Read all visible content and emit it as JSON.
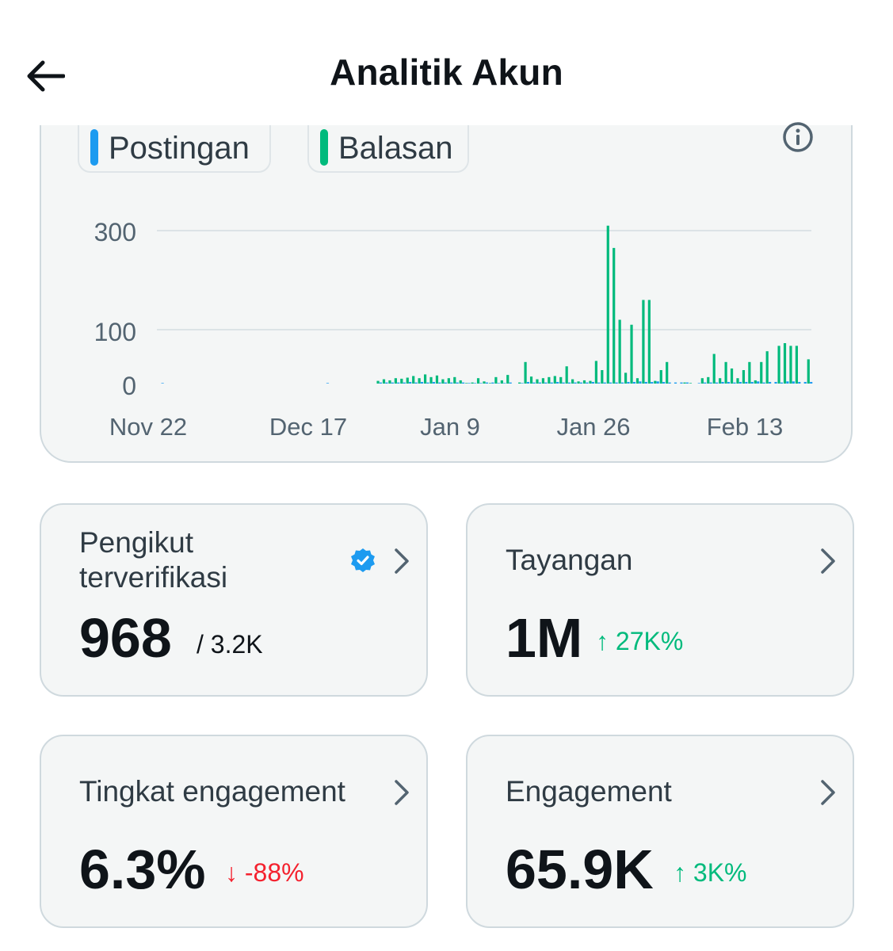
{
  "header": {
    "title": "Analitik Akun",
    "back_icon": "arrow-left-icon"
  },
  "legend": [
    {
      "label": "Postingan",
      "color": "#1d9bf0"
    },
    {
      "label": "Balasan",
      "color": "#00ba7c"
    }
  ],
  "info_icon": "info-icon",
  "chart_data": {
    "type": "bar",
    "x_tick_labels": [
      "Nov 22",
      "Dec 17",
      "Jan 9",
      "Jan 26",
      "Feb 13"
    ],
    "y_tick_labels": [
      "300",
      "100",
      "0"
    ],
    "y_ticks": [
      300,
      100,
      0
    ],
    "ylim": [
      0,
      320
    ],
    "grid": true,
    "legend_position": "top-left",
    "series": [
      {
        "name": "Postingan",
        "color": "#1d9bf0",
        "values": [
          1,
          0,
          0,
          0,
          0,
          0,
          0,
          0,
          0,
          0,
          0,
          0,
          0,
          0,
          0,
          0,
          0,
          0,
          0,
          0,
          0,
          0,
          0,
          0,
          0,
          0,
          0,
          0,
          1,
          0,
          0,
          0,
          0,
          0,
          0,
          0,
          0,
          2,
          2,
          2,
          2,
          2,
          3,
          2,
          3,
          2,
          3,
          2,
          2,
          2,
          2,
          2,
          1,
          1,
          1,
          2,
          2,
          1,
          1,
          2,
          0,
          1,
          3,
          2,
          2,
          2,
          2,
          3,
          2,
          2,
          2,
          2,
          2,
          3,
          2,
          2,
          2,
          2,
          2,
          3,
          3,
          4,
          3,
          3,
          4,
          3,
          2,
          2,
          2,
          2,
          0,
          1,
          2,
          2,
          2,
          3,
          3,
          2,
          3,
          3,
          3,
          4,
          2,
          3,
          3,
          2,
          4,
          4,
          3,
          3,
          3
        ]
      },
      {
        "name": "Balasan",
        "color": "#00ba7c",
        "values": [
          0,
          0,
          0,
          0,
          0,
          0,
          0,
          0,
          0,
          0,
          0,
          0,
          0,
          0,
          0,
          0,
          0,
          0,
          0,
          0,
          0,
          0,
          0,
          0,
          0,
          0,
          0,
          0,
          0,
          0,
          0,
          0,
          0,
          0,
          0,
          0,
          0,
          5,
          8,
          6,
          10,
          9,
          11,
          14,
          10,
          17,
          12,
          15,
          8,
          10,
          12,
          6,
          1,
          2,
          10,
          4,
          1,
          12,
          6,
          16,
          0,
          2,
          40,
          13,
          8,
          10,
          12,
          14,
          12,
          32,
          8,
          4,
          6,
          5,
          42,
          25,
          310,
          265,
          120,
          20,
          110,
          10,
          160,
          160,
          5,
          25,
          40,
          0,
          0,
          2,
          1,
          0,
          10,
          12,
          55,
          10,
          40,
          28,
          10,
          25,
          40,
          6,
          40,
          60,
          0,
          70,
          75,
          70,
          70,
          0,
          45,
          12
        ]
      }
    ]
  },
  "cards": [
    {
      "label": "Pengikut terverifikasi",
      "label_line1": "Pengikut",
      "label_line2": "terverifikasi",
      "value": "968",
      "sub": "/ 3.2K",
      "verified_icon": "verified-badge-icon",
      "chevron_icon": "chevron-right-icon"
    },
    {
      "label": "Tayangan",
      "value": "1M",
      "change": "↑ 27K%",
      "change_color": "#00ba7c",
      "chevron_icon": "chevron-right-icon"
    },
    {
      "label": "Tingkat engagement",
      "value": "6.3%",
      "change": "↓ -88%",
      "change_color": "#f4212e",
      "chevron_icon": "chevron-right-icon"
    },
    {
      "label": "Engagement",
      "value": "65.9K",
      "change": "↑ 3K%",
      "change_color": "#00ba7c",
      "chevron_icon": "chevron-right-icon"
    }
  ]
}
